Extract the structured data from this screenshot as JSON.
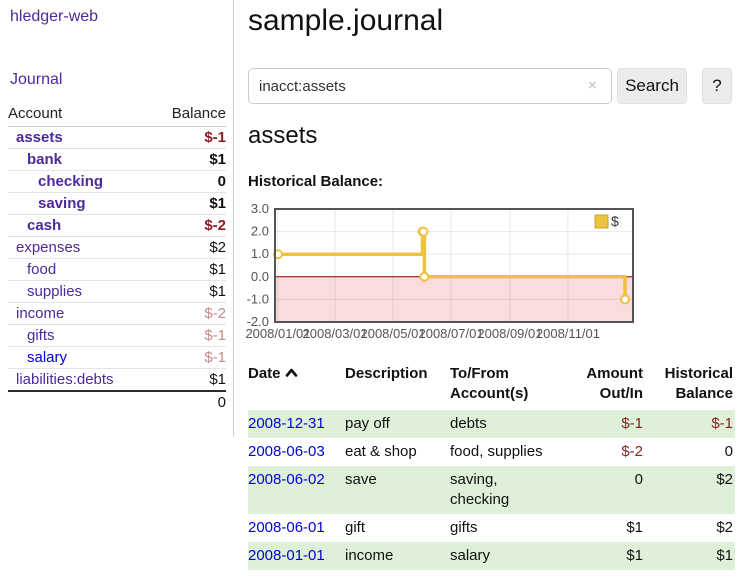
{
  "app": {
    "title": "hledger-web",
    "nav_journal": "Journal"
  },
  "sidebar": {
    "headers": {
      "account": "Account",
      "balance": "Balance"
    },
    "rows": [
      {
        "account": "assets",
        "indent": 1,
        "bold": true,
        "balance": "$-1",
        "balance_style": "neg-strong",
        "link": "purple"
      },
      {
        "account": "bank",
        "indent": 2,
        "bold": true,
        "balance": "$1",
        "balance_style": "pos",
        "link": "purple"
      },
      {
        "account": "checking",
        "indent": 3,
        "bold": true,
        "balance": "0",
        "balance_style": "pos",
        "link": "purple"
      },
      {
        "account": "saving",
        "indent": 3,
        "bold": true,
        "balance": "$1",
        "balance_style": "pos",
        "link": "purple"
      },
      {
        "account": "cash",
        "indent": 2,
        "bold": true,
        "balance": "$-2",
        "balance_style": "neg-strong",
        "link": "purple"
      },
      {
        "account": "expenses",
        "indent": 1,
        "bold": false,
        "balance": "$2",
        "balance_style": "pos",
        "link": "purple"
      },
      {
        "account": "food",
        "indent": 2,
        "bold": false,
        "balance": "$1",
        "balance_style": "pos",
        "link": "purple"
      },
      {
        "account": "supplies",
        "indent": 2,
        "bold": false,
        "balance": "$1",
        "balance_style": "pos",
        "link": "purple"
      },
      {
        "account": "income",
        "indent": 1,
        "bold": false,
        "balance": "$-2",
        "balance_style": "neg-weak",
        "link": "purple"
      },
      {
        "account": "gifts",
        "indent": 2,
        "bold": false,
        "balance": "$-1",
        "balance_style": "neg-weak",
        "link": "purple"
      },
      {
        "account": "salary",
        "indent": 2,
        "bold": false,
        "balance": "$-1",
        "balance_style": "neg-weak",
        "link": "blue"
      },
      {
        "account": "liabilities:debts",
        "indent": 1,
        "bold": false,
        "balance": "$1",
        "balance_style": "pos",
        "link": "purple"
      }
    ],
    "total": "0"
  },
  "main": {
    "title": "sample.journal",
    "search": {
      "value": "inacct:assets",
      "clear_icon": "×",
      "button": "Search",
      "help_button": "?"
    },
    "account_heading": "assets",
    "chart_label": "Historical Balance:"
  },
  "chart_data": {
    "type": "line",
    "title": "Historical Balance:",
    "steps": true,
    "series": [
      {
        "name": "$",
        "color": "#edc240",
        "points": [
          [
            "2008-01-01",
            1
          ],
          [
            "2008-06-01",
            2
          ],
          [
            "2008-06-02",
            2
          ],
          [
            "2008-06-03",
            0
          ],
          [
            "2008-12-31",
            -1
          ]
        ]
      }
    ],
    "x_ticks": [
      "2008/01/01",
      "2008/03/01",
      "2008/05/01",
      "2008/07/01",
      "2008/09/01",
      "2008/11/01"
    ],
    "y_ticks": [
      "3.0",
      "2.0",
      "1.0",
      "0.0",
      "-1.0",
      "-2.0"
    ],
    "ylim": [
      -2,
      3
    ],
    "x_domain": [
      "2008-01-01",
      "2008-12-31"
    ],
    "legend": {
      "label": "$",
      "position": "top-right"
    },
    "colors": {
      "line": "#edc240",
      "marker_fill": "#ffffff",
      "negative_region": "#fadcdc",
      "zero_line": "#8b0000",
      "border": "#545454",
      "grid": "rgba(0,0,0,0.09)",
      "tick_text": "#545454"
    }
  },
  "transactions": {
    "headers": {
      "date": "Date",
      "description": "Description",
      "accounts": "To/From Account(s)",
      "amount": "Amount Out/In",
      "balance": "Historical Balance"
    },
    "rows": [
      {
        "date": "2008-12-31",
        "description": "pay off",
        "accounts": "debts",
        "amount": "$-1",
        "amount_neg": true,
        "balance": "$-1",
        "balance_neg": true,
        "shade": true
      },
      {
        "date": "2008-06-03",
        "description": "eat & shop",
        "accounts": "food, supplies",
        "amount": "$-2",
        "amount_neg": true,
        "balance": "0",
        "balance_neg": false,
        "shade": false
      },
      {
        "date": "2008-06-02",
        "description": "save",
        "accounts": "saving, checking",
        "amount": "0",
        "amount_neg": false,
        "balance": "$2",
        "balance_neg": false,
        "shade": true
      },
      {
        "date": "2008-06-01",
        "description": "gift",
        "accounts": "gifts",
        "amount": "$1",
        "amount_neg": false,
        "balance": "$2",
        "balance_neg": false,
        "shade": false
      },
      {
        "date": "2008-01-01",
        "description": "income",
        "accounts": "salary",
        "amount": "$1",
        "amount_neg": false,
        "balance": "$1",
        "balance_neg": false,
        "shade": true
      }
    ]
  }
}
